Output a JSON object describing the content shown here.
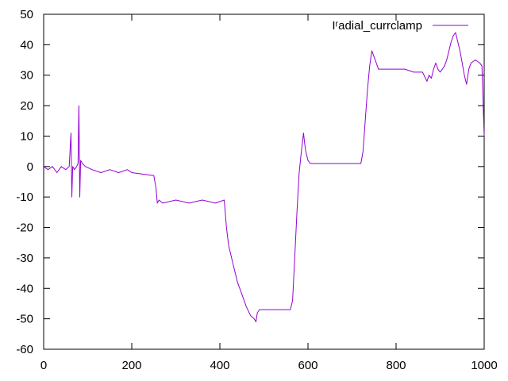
{
  "chart_data": {
    "type": "line",
    "title": "",
    "xlabel": "",
    "ylabel": "",
    "xlim": [
      0,
      1000
    ],
    "ylim": [
      -60,
      50
    ],
    "x_ticks": [
      0,
      200,
      400,
      600,
      800,
      1000
    ],
    "y_ticks": [
      -60,
      -50,
      -40,
      -30,
      -20,
      -10,
      0,
      10,
      20,
      30,
      40,
      50
    ],
    "grid": false,
    "legend_position": "top-right",
    "series": [
      {
        "name": "Iʳadial_currclamp",
        "color": "#9400d3",
        "x": [
          0,
          10,
          20,
          30,
          40,
          50,
          58,
          62,
          64,
          66,
          70,
          75,
          78,
          80,
          82,
          84,
          88,
          95,
          110,
          130,
          150,
          170,
          190,
          200,
          250,
          255,
          258,
          262,
          270,
          300,
          330,
          360,
          390,
          410,
          415,
          420,
          430,
          440,
          450,
          460,
          470,
          478,
          482,
          485,
          490,
          500,
          520,
          540,
          560,
          565,
          570,
          575,
          580,
          585,
          590,
          592,
          595,
          600,
          605,
          610,
          630,
          660,
          690,
          720,
          725,
          730,
          735,
          740,
          745,
          750,
          760,
          780,
          800,
          820,
          840,
          860,
          870,
          875,
          880,
          885,
          890,
          895,
          900,
          905,
          910,
          915,
          920,
          925,
          930,
          935,
          940,
          945,
          950,
          955,
          960,
          965,
          970,
          980,
          990,
          995,
          1000
        ],
        "y": [
          0,
          -1,
          0,
          -2,
          0,
          -1,
          0,
          11,
          -10,
          0,
          -1,
          0,
          1,
          20,
          -10,
          2,
          1,
          0,
          -1,
          -2,
          -1,
          -2,
          -1,
          -2,
          -3,
          -7,
          -12,
          -11,
          -12,
          -11,
          -12,
          -11,
          -12,
          -11,
          -20,
          -26,
          -32,
          -38,
          -42,
          -46,
          -49,
          -50,
          -51,
          -48,
          -47,
          -47,
          -47,
          -47,
          -47,
          -44,
          -30,
          -15,
          -2,
          5,
          11,
          8,
          5,
          2,
          1,
          1,
          1,
          1,
          1,
          1,
          5,
          15,
          25,
          33,
          38,
          36,
          32,
          32,
          32,
          32,
          31,
          31,
          28,
          30,
          29,
          32,
          34,
          32,
          31,
          32,
          33,
          35,
          38,
          41,
          43,
          44,
          41,
          38,
          34,
          30,
          27,
          32,
          34,
          35,
          34,
          33,
          10
        ]
      }
    ]
  }
}
